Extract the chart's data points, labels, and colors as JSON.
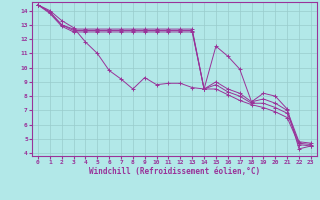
{
  "xlabel": "Windchill (Refroidissement éolien,°C)",
  "background_color": "#b2e8e8",
  "line_color": "#993399",
  "grid_color": "#99cccc",
  "xlim": [
    -0.5,
    23.5
  ],
  "ylim": [
    3.8,
    14.6
  ],
  "xticks": [
    0,
    1,
    2,
    3,
    4,
    5,
    6,
    7,
    8,
    9,
    10,
    11,
    12,
    13,
    14,
    15,
    16,
    17,
    18,
    19,
    20,
    21,
    22,
    23
  ],
  "yticks": [
    4,
    5,
    6,
    7,
    8,
    9,
    10,
    11,
    12,
    13,
    14
  ],
  "lines": [
    {
      "x": [
        0,
        1,
        2,
        3,
        4,
        5,
        6,
        7,
        8,
        9,
        10,
        11,
        12,
        13,
        14,
        15,
        16,
        17,
        18,
        19,
        20,
        21,
        22,
        23
      ],
      "y": [
        14.4,
        14.0,
        13.3,
        12.8,
        11.8,
        11.0,
        9.8,
        9.2,
        8.5,
        9.3,
        8.8,
        8.9,
        8.9,
        8.6,
        8.5,
        11.5,
        10.8,
        9.9,
        7.6,
        8.2,
        8.0,
        7.1,
        4.3,
        4.5
      ]
    },
    {
      "x": [
        0,
        1,
        2,
        3,
        4,
        5,
        6,
        7,
        8,
        9,
        10,
        11,
        12,
        13,
        14,
        15,
        16,
        17,
        18,
        19,
        20,
        21,
        22,
        23
      ],
      "y": [
        14.4,
        13.9,
        13.0,
        12.7,
        12.7,
        12.7,
        12.7,
        12.7,
        12.7,
        12.7,
        12.7,
        12.7,
        12.7,
        12.7,
        8.5,
        9.0,
        8.5,
        8.2,
        7.6,
        7.8,
        7.5,
        7.0,
        4.8,
        4.7
      ]
    },
    {
      "x": [
        0,
        1,
        2,
        3,
        4,
        5,
        6,
        7,
        8,
        9,
        10,
        11,
        12,
        13,
        14,
        15,
        16,
        17,
        18,
        19,
        20,
        21,
        22,
        23
      ],
      "y": [
        14.4,
        13.9,
        13.0,
        12.6,
        12.6,
        12.6,
        12.6,
        12.6,
        12.6,
        12.6,
        12.6,
        12.6,
        12.6,
        12.6,
        8.5,
        8.8,
        8.3,
        8.0,
        7.5,
        7.5,
        7.2,
        6.8,
        4.7,
        4.6
      ]
    },
    {
      "x": [
        0,
        1,
        2,
        3,
        4,
        5,
        6,
        7,
        8,
        9,
        10,
        11,
        12,
        13,
        14,
        15,
        16,
        17,
        18,
        19,
        20,
        21,
        22,
        23
      ],
      "y": [
        14.4,
        13.8,
        12.9,
        12.5,
        12.5,
        12.5,
        12.5,
        12.5,
        12.5,
        12.5,
        12.5,
        12.5,
        12.5,
        12.5,
        8.5,
        8.5,
        8.1,
        7.7,
        7.4,
        7.2,
        6.9,
        6.5,
        4.6,
        4.5
      ]
    }
  ]
}
